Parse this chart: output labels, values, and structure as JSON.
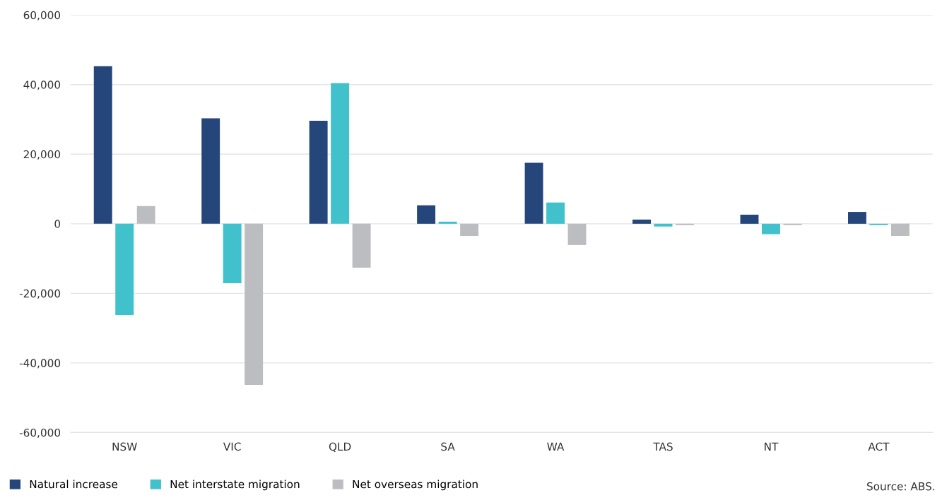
{
  "chart_data": {
    "type": "bar",
    "categories": [
      "NSW",
      "VIC",
      "QLD",
      "SA",
      "WA",
      "TAS",
      "NT",
      "ACT"
    ],
    "series": [
      {
        "name": "Natural increase",
        "color": "#25467a",
        "values": [
          45300,
          30300,
          29600,
          5300,
          17500,
          1200,
          2600,
          3400
        ]
      },
      {
        "name": "Net interstate migration",
        "color": "#40c1cc",
        "values": [
          -26200,
          -17100,
          40400,
          600,
          6100,
          -800,
          -3000,
          -400
        ]
      },
      {
        "name": "Net overseas migration",
        "color": "#bcbdc1",
        "values": [
          5100,
          -46300,
          -12600,
          -3500,
          -6100,
          -400,
          -400,
          -3500
        ]
      }
    ],
    "ylim": [
      -60000,
      60000
    ],
    "yticks": [
      {
        "value": -60000,
        "label": "-60,000"
      },
      {
        "value": -40000,
        "label": "-40,000"
      },
      {
        "value": -20000,
        "label": "-20,000"
      },
      0,
      {
        "value": 20000,
        "label": "20,000"
      },
      {
        "value": 40000,
        "label": "40,000"
      },
      {
        "value": 60000,
        "label": "60,000"
      }
    ],
    "grid": "y",
    "legend": "bottom left",
    "annotations": [
      "Source: ABS."
    ]
  }
}
